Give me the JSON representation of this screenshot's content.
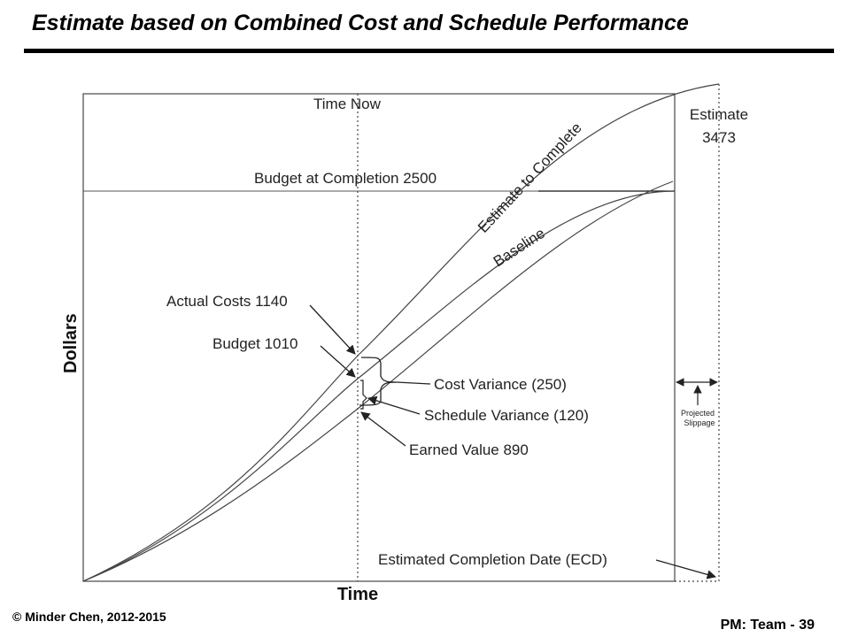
{
  "slide": {
    "title": "Estimate based on Combined Cost and Schedule Performance",
    "copyright": "© Minder Chen, 2012-2015",
    "page_label": "PM: Team - 39"
  },
  "diagram": {
    "time_now_label": "Time  Now",
    "estimate_label": "Estimate",
    "estimate_value": "3473",
    "budget_at_completion": "Budget at Completion 2500",
    "etc_curve_label": "Estimate to Complete",
    "baseline_curve_label": "Baseline",
    "actual_costs": "Actual Costs 1140",
    "budget": "Budget 1010",
    "cost_variance": "Cost Variance (250)",
    "schedule_variance": "Schedule Variance (120)",
    "earned_value": "Earned Value 890",
    "projected_slippage_line1": "Projected",
    "projected_slippage_line2": "Slippage",
    "ecd": "Estimated Completion Date (ECD)",
    "x_axis": "Time",
    "y_axis": "Dollars"
  }
}
